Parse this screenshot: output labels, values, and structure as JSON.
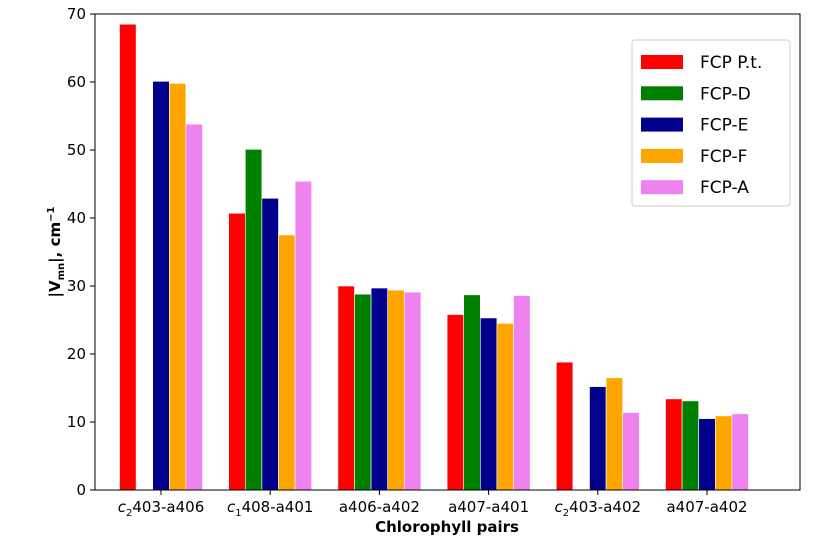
{
  "chart_data": {
    "type": "bar",
    "xlabel": "Chlorophyll pairs",
    "ylabel": "|V",
    "ylabel_sub": "mn",
    "ylabel_tail": "|, cm",
    "ylabel_sup": "−1",
    "ylim": [
      0,
      70
    ],
    "yticks": [
      0,
      10,
      20,
      30,
      40,
      50,
      60,
      70
    ],
    "grid": false,
    "legend_position": "top-right",
    "categories": [
      {
        "pre": "c",
        "sub": "2",
        "post": "403-a406"
      },
      {
        "pre": "c",
        "sub": "1",
        "post": "408-a401"
      },
      {
        "pre": "a406-a402",
        "sub": "",
        "post": ""
      },
      {
        "pre": "a407-a401",
        "sub": "",
        "post": ""
      },
      {
        "pre": "c",
        "sub": "2",
        "post": "403-a402"
      },
      {
        "pre": "a407-a402",
        "sub": "",
        "post": ""
      }
    ],
    "series": [
      {
        "name": "FCP P.t.",
        "color": "#ff0000",
        "values": [
          68.5,
          40.7,
          30.0,
          25.8,
          18.8,
          13.4
        ]
      },
      {
        "name": "FCP-D",
        "color": "#008000",
        "values": [
          null,
          50.1,
          28.8,
          28.7,
          null,
          13.1
        ]
      },
      {
        "name": "FCP-E",
        "color": "#00008b",
        "values": [
          60.1,
          42.9,
          29.7,
          25.3,
          15.2,
          10.5
        ]
      },
      {
        "name": "FCP-F",
        "color": "#ffa500",
        "values": [
          59.8,
          37.5,
          29.4,
          24.5,
          16.5,
          10.9
        ]
      },
      {
        "name": "FCP-A",
        "color": "#ee82ee",
        "values": [
          53.8,
          45.4,
          29.1,
          28.6,
          11.4,
          11.2
        ]
      }
    ]
  }
}
